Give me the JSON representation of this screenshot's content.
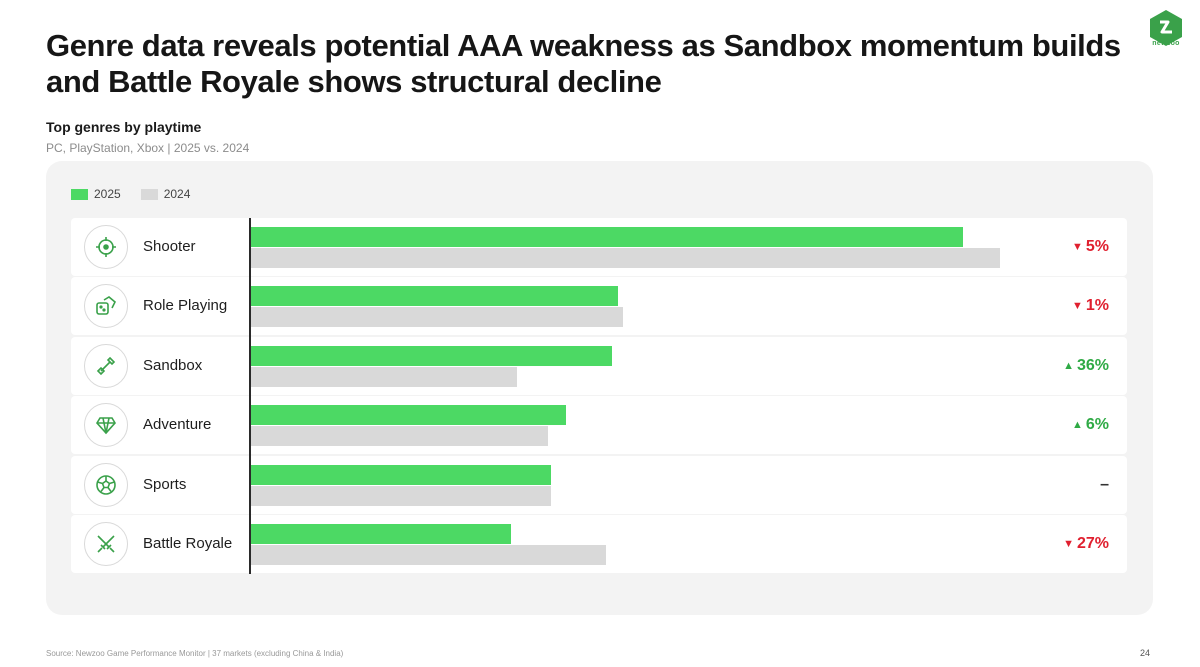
{
  "header": {
    "title": "Genre data reveals potential AAA weakness as Sandbox momentum builds and Battle Royale shows structural decline",
    "logo_text": "newzoo"
  },
  "chart_data": {
    "type": "bar",
    "orientation": "horizontal",
    "title": "Top genres by playtime",
    "subtitle": "PC, PlayStation, Xbox | 2025 vs. 2024",
    "categories": [
      "Shooter",
      "Role Playing",
      "Sandbox",
      "Adventure",
      "Sports",
      "Battle Royale"
    ],
    "series": [
      {
        "name": "2025",
        "color": "#4cd964",
        "values": [
          712,
          367,
          361,
          315,
          300,
          260
        ]
      },
      {
        "name": "2024",
        "color": "#d9d9d9",
        "values": [
          749,
          372,
          266,
          297,
          300,
          355
        ]
      }
    ],
    "changes": [
      {
        "label": "5%",
        "direction": "down"
      },
      {
        "label": "1%",
        "direction": "down"
      },
      {
        "label": "36%",
        "direction": "up"
      },
      {
        "label": "6%",
        "direction": "up"
      },
      {
        "label": "–",
        "direction": "flat"
      },
      {
        "label": "27%",
        "direction": "down"
      }
    ],
    "icons": [
      "crosshair-icon",
      "dice-icon",
      "shovel-icon",
      "gem-icon",
      "soccer-ball-icon",
      "crossed-swords-icon"
    ],
    "xlim": [
      0,
      800
    ],
    "grid": false,
    "legend_position": "top-left"
  },
  "footer": {
    "source": "Source: Newzoo Game Performance Monitor | 37 markets (excluding China & India)",
    "page": "24"
  }
}
